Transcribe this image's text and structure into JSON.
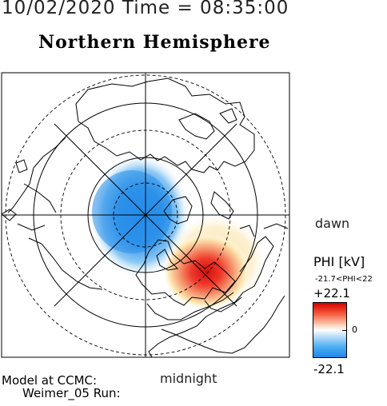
{
  "header": {
    "timestamp": "10/02/2020 Time = 08:35:00",
    "title": "Northern Hemisphere"
  },
  "map": {
    "projection": "polar",
    "orientation_labels": {
      "dawn": "dawn",
      "midnight": "midnight"
    },
    "potential_colors": {
      "positive": "#e0201a",
      "negative": "#2b8fe8",
      "neutral": "#ffffff"
    }
  },
  "colorbar": {
    "quantity_label": "PHI [kV]",
    "range_text": "-21.7<PHI<22",
    "max_label": "+22.1",
    "zero_label": "0",
    "min_label": "-22.1"
  },
  "footer": {
    "model_line1": "Model at CCMC:",
    "model_line2": "Weimer_05 Run:"
  }
}
